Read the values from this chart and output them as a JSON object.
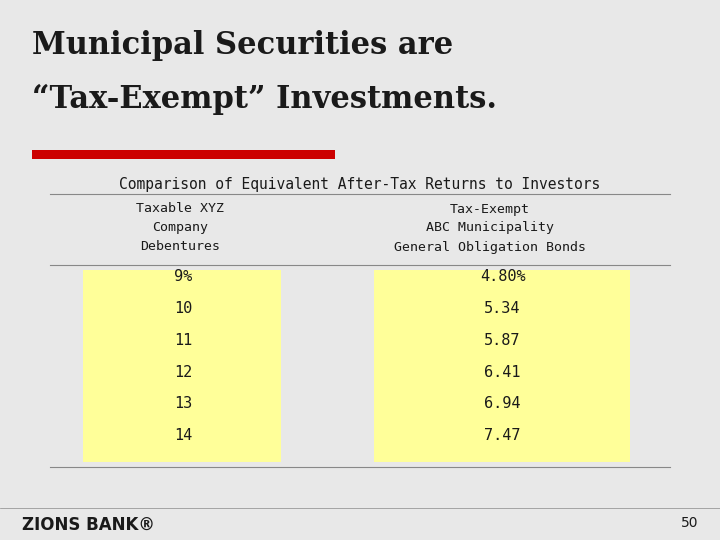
{
  "title_line1": "Municipal Securities are",
  "title_line2": "“Tax-Exempt” Investments.",
  "subtitle": "Comparison of Equivalent After-Tax Returns to Investors",
  "col1_header": "Taxable XYZ\nCompany\nDebentures",
  "col2_header": "Tax-Exempt\nABC Municipality\nGeneral Obligation Bonds",
  "col1_values": [
    "9%",
    "10",
    "11",
    "12",
    "13",
    "14"
  ],
  "col2_values": [
    "4.80%",
    "5.34",
    "5.87",
    "6.41",
    "6.94",
    "7.47"
  ],
  "cell_bg_color": "#FFFF99",
  "bg_color": "#E8E8E8",
  "title_color": "#1a1a1a",
  "red_bar_color": "#CC0000",
  "subtitle_color": "#1a1a1a",
  "header_color": "#1a1a1a",
  "value_color": "#1a1a1a",
  "footer_text": "ZIONS BANK®",
  "page_number": "50",
  "line_color": "#888888"
}
